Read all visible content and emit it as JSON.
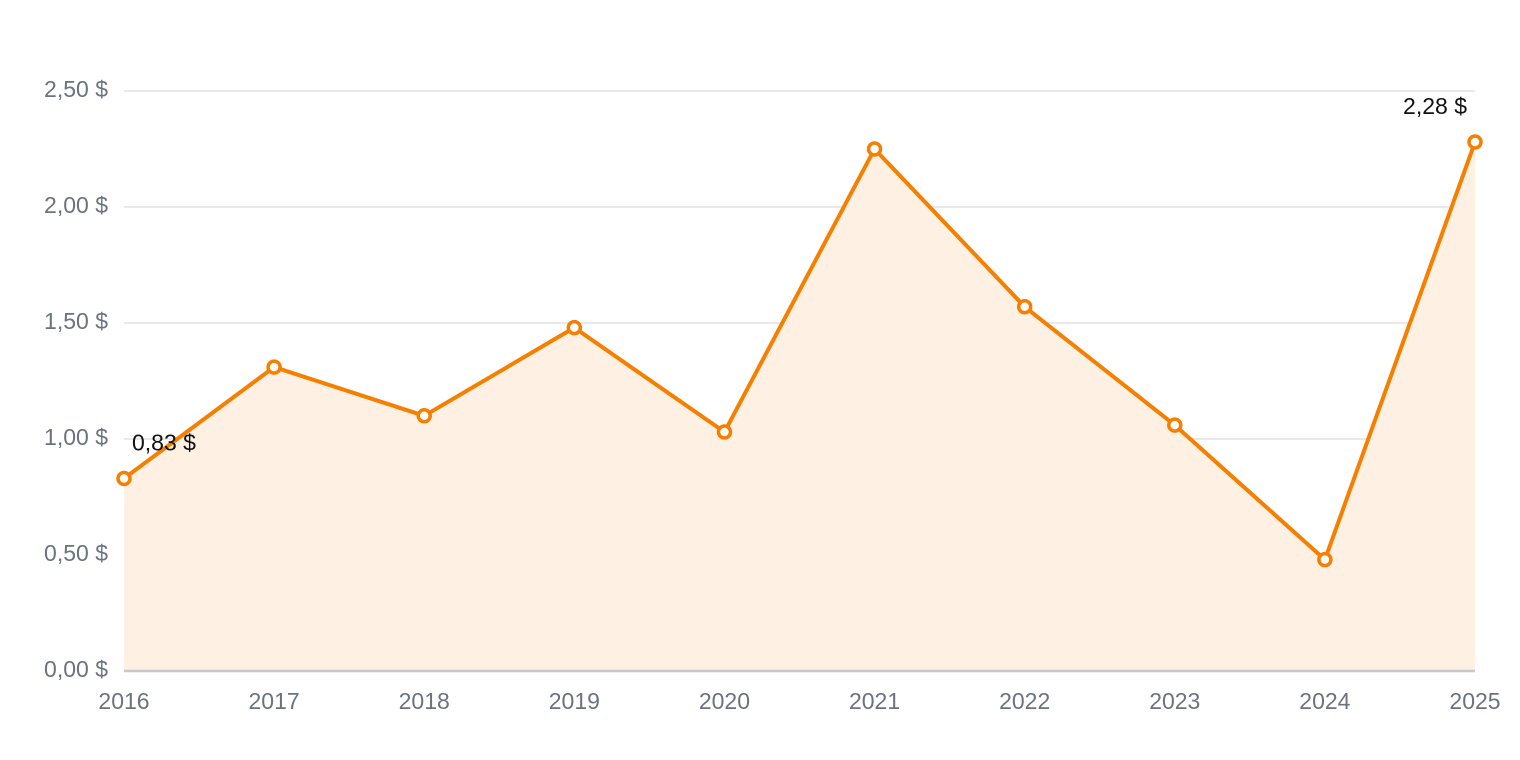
{
  "chart_data": {
    "type": "area-line",
    "categories": [
      "2016",
      "2017",
      "2018",
      "2019",
      "2020",
      "2021",
      "2022",
      "2023",
      "2024",
      "2025"
    ],
    "values": [
      0.83,
      1.31,
      1.1,
      1.48,
      1.03,
      2.25,
      1.57,
      1.06,
      0.48,
      2.28
    ],
    "value_labels": [
      "0,83 $",
      null,
      null,
      null,
      null,
      null,
      null,
      null,
      null,
      "2,28 $"
    ],
    "color": "#f77f00",
    "area_color": "#fef1e4",
    "ylim": [
      0,
      2.5
    ],
    "yticks": [
      {
        "value": 0,
        "label": "0,00 $"
      },
      {
        "value": 0.5,
        "label": "0,50 $"
      },
      {
        "value": 1,
        "label": "1,00 $"
      },
      {
        "value": 1.5,
        "label": "1,50 $"
      },
      {
        "value": 2,
        "label": "2,00 $"
      },
      {
        "value": 2.5,
        "label": "2,50 $"
      }
    ],
    "grid": true
  }
}
